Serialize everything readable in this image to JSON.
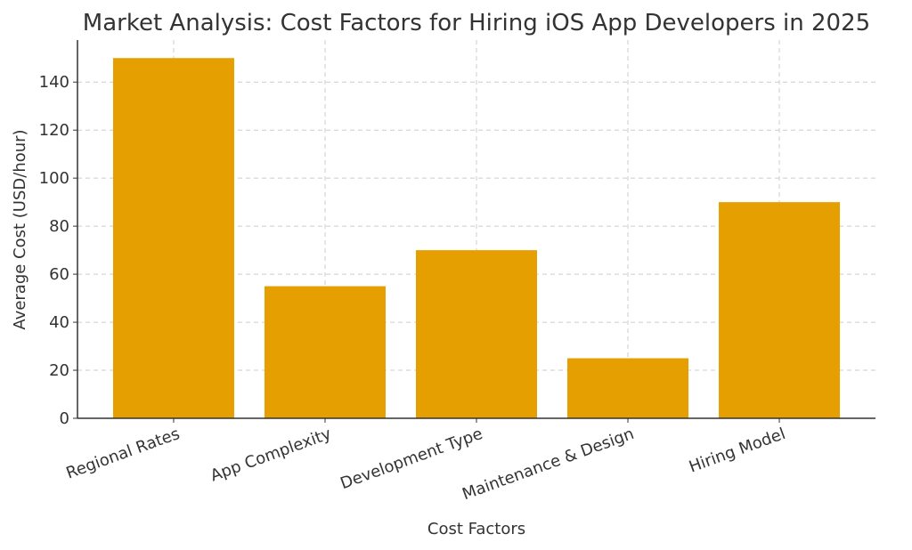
{
  "chart_data": {
    "type": "bar",
    "title": "Market Analysis: Cost Factors for Hiring iOS App Developers in 2025",
    "x_label": "Cost Factors",
    "y_label": "Average Cost (USD/hour)",
    "categories": [
      "Regional Rates",
      "App Complexity",
      "Development Type",
      "Maintenance & Design",
      "Hiring Model"
    ],
    "values": [
      150,
      55,
      70,
      25,
      90
    ],
    "color": "#e69f00",
    "ylim": [
      0,
      157.5
    ],
    "yticks": [
      0,
      20,
      40,
      60,
      80,
      100,
      120,
      140
    ],
    "grid": true
  }
}
